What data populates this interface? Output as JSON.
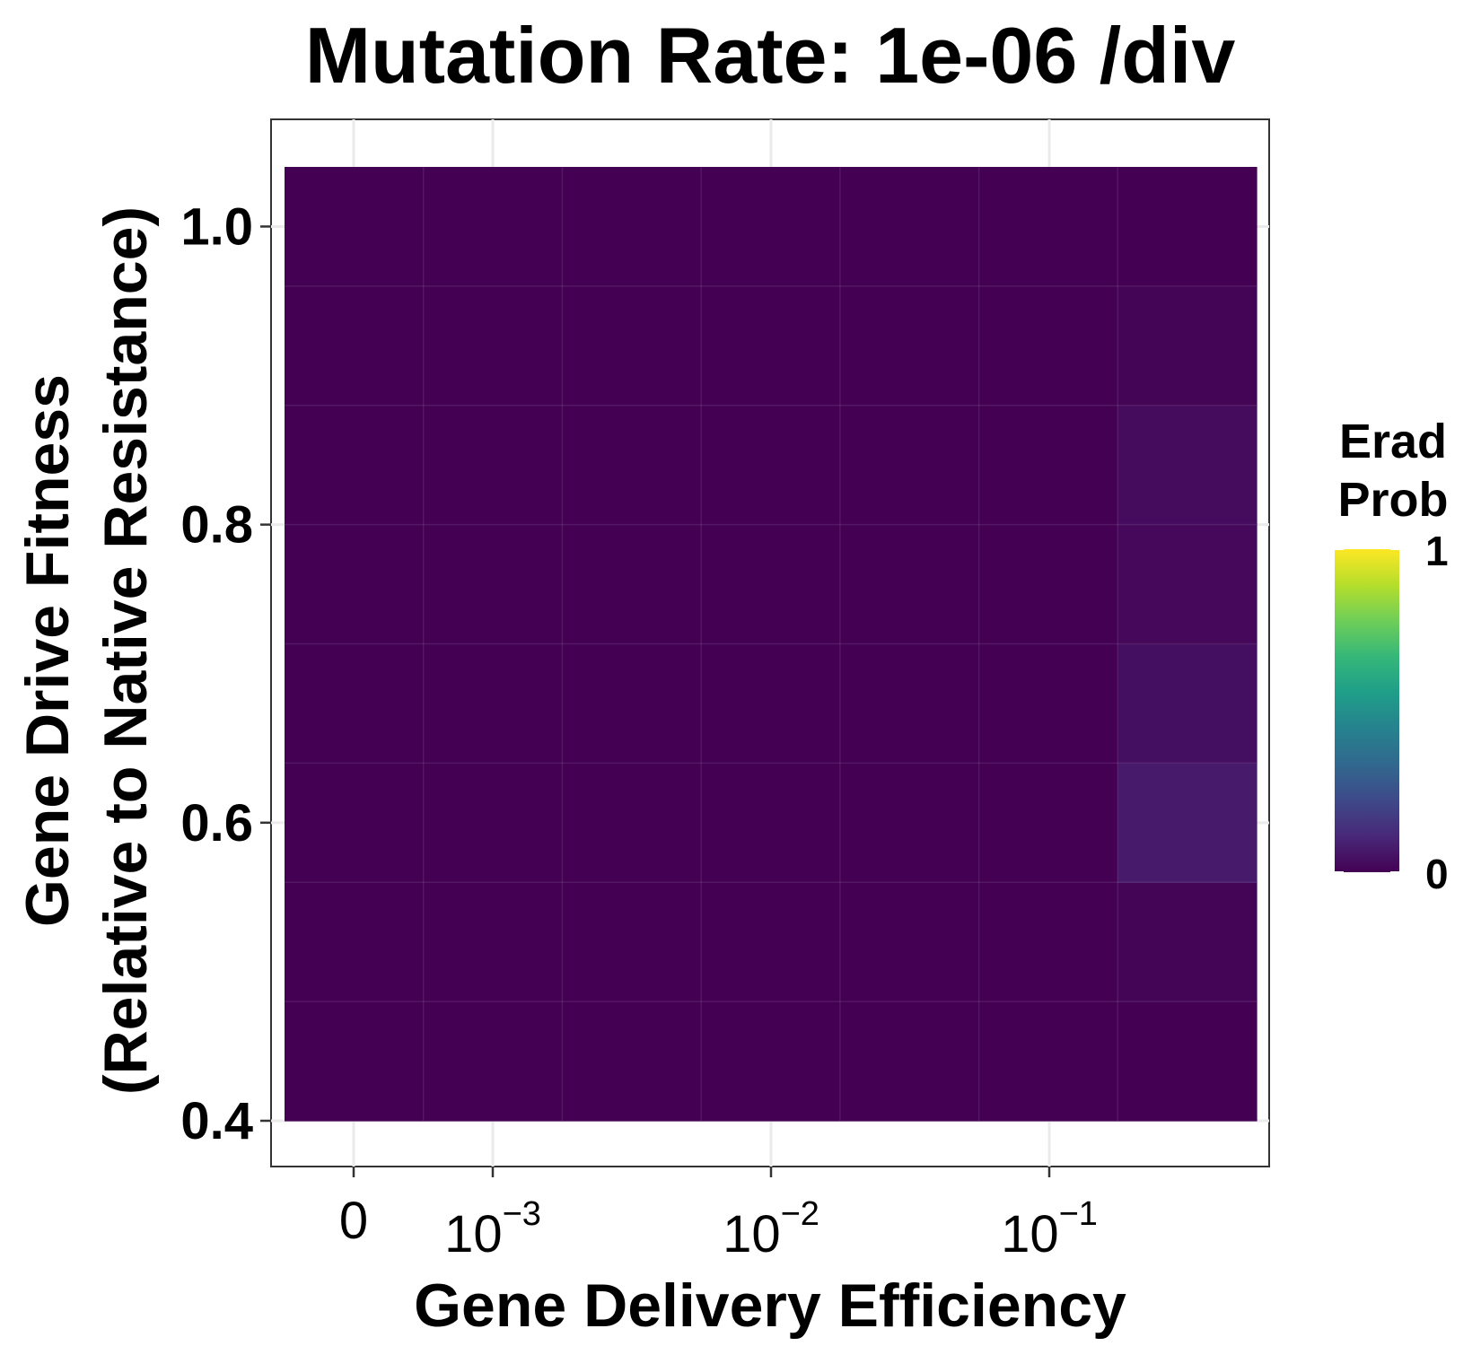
{
  "chart_data": {
    "type": "heatmap",
    "title": "Mutation Rate: 1e-06 /div",
    "xlabel": "Gene Delivery Efficiency",
    "ylabel_line1": "Gene Drive Fitness",
    "ylabel_line2": "(Relative to Native Resistance)",
    "x_tick_labels": [
      {
        "base": "0",
        "exp": ""
      },
      {
        "base": "10",
        "exp": "−3"
      },
      {
        "base": "10",
        "exp": "−2"
      },
      {
        "base": "10",
        "exp": "−1"
      }
    ],
    "y_ticks": [
      0.4,
      0.6,
      0.8,
      1.0
    ],
    "y_tick_labels": [
      "0.4",
      "0.6",
      "0.8",
      "1.0"
    ],
    "ylim": [
      0.4,
      1.04
    ],
    "columns": [
      "0",
      "0.0005",
      "0.001",
      "0.005",
      "0.01",
      "0.05",
      "0.1"
    ],
    "rows": [
      0.44,
      0.52,
      0.6,
      0.68,
      0.76,
      0.84,
      0.92,
      1.0
    ],
    "values": [
      [
        0,
        0,
        0,
        0,
        0,
        0,
        0
      ],
      [
        0,
        0,
        0,
        0,
        0,
        0,
        0.01
      ],
      [
        0,
        0,
        0,
        0,
        0,
        0,
        0.07
      ],
      [
        0,
        0,
        0,
        0,
        0,
        0,
        0.04
      ],
      [
        0,
        0,
        0,
        0,
        0,
        0,
        0.02
      ],
      [
        0,
        0,
        0,
        0,
        0,
        0,
        0.03
      ],
      [
        0,
        0,
        0,
        0,
        0,
        0,
        0.01
      ],
      [
        0,
        0,
        0,
        0,
        0,
        0,
        0
      ]
    ],
    "legend": {
      "title_line1": "Erad",
      "title_line2": "Prob",
      "max_label": "1",
      "min_label": "0",
      "colormap": [
        "#440154",
        "#482878",
        "#3e4989",
        "#31688e",
        "#26828e",
        "#1f9e89",
        "#35b779",
        "#6ece58",
        "#b5de2b",
        "#fde725"
      ]
    },
    "grid": true
  }
}
